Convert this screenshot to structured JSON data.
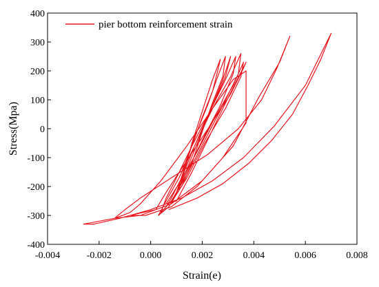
{
  "chart_data": {
    "type": "line",
    "title": "",
    "xlabel": "Strain(e)",
    "ylabel": "Stress(Mpa)",
    "xlim": [
      -0.004,
      0.008
    ],
    "ylim": [
      -400,
      400
    ],
    "xticks": [
      -0.004,
      -0.002,
      0.0,
      0.002,
      0.004,
      0.006,
      0.008
    ],
    "xtick_labels": [
      "-0.004",
      "-0.002",
      "0.000",
      "0.002",
      "0.004",
      "0.006",
      "0.008"
    ],
    "yticks": [
      -400,
      -300,
      -200,
      -100,
      0,
      100,
      200,
      300,
      400
    ],
    "ytick_labels": [
      "-400",
      "-300",
      "-200",
      "-100",
      "0",
      "100",
      "200",
      "300",
      "400"
    ],
    "grid": false,
    "legend_position": "top-left",
    "series": [
      {
        "name": "pier bottom reinforcement strain",
        "color": "#e8141c",
        "x": [
          0.0012,
          0.0016,
          0.002,
          0.0024,
          0.0026,
          0.0027,
          0.0024,
          0.002,
          0.0016,
          0.0013,
          0.0011,
          0.0012,
          0.0016,
          0.002,
          0.0024,
          0.0028,
          0.0029,
          0.0026,
          0.0022,
          0.0017,
          0.0013,
          0.001,
          0.0008,
          0.001,
          0.0014,
          0.0019,
          0.0024,
          0.0029,
          0.0031,
          0.0028,
          0.0023,
          0.0017,
          0.0012,
          0.0008,
          0.0006,
          0.0009,
          0.0014,
          0.002,
          0.0027,
          0.0032,
          0.0033,
          0.0029,
          0.0023,
          0.0016,
          0.001,
          0.0006,
          0.0004,
          0.0008,
          0.0014,
          0.0021,
          0.0028,
          0.0034,
          0.0035,
          0.0031,
          0.0024,
          0.0017,
          0.0011,
          0.0006,
          0.0003,
          0.0007,
          0.0014,
          0.0021,
          0.0029,
          0.0035,
          0.0036,
          0.0032,
          0.0025,
          0.0018,
          0.0011,
          0.0006,
          0.001,
          0.0016,
          0.0022,
          0.0028,
          0.0033,
          0.0037,
          0.0036,
          0.0031,
          0.0023,
          0.0014,
          0.0006,
          0.0002,
          -0.0008,
          -0.0002,
          0.0008,
          0.0018,
          0.0028,
          0.0037,
          0.0037,
          0.0032,
          0.0024,
          0.0014,
          0.0004,
          -0.0004,
          -0.0008,
          -0.0014,
          -0.0004,
          0.0008,
          0.002,
          0.0032,
          0.0042,
          0.005,
          0.0054,
          0.0049,
          0.0043,
          0.0034,
          0.0022,
          0.0008,
          -0.0004,
          -0.001,
          -0.0014,
          -0.0026,
          -0.0022,
          -0.0012,
          0.0,
          0.0012,
          0.0024,
          0.0036,
          0.0048,
          0.006,
          0.007,
          0.0066,
          0.0061,
          0.0055,
          0.0047,
          0.0038,
          0.0028,
          0.0018,
          0.0007
        ],
        "y": [
          -150,
          -60,
          40,
          130,
          200,
          240,
          170,
          60,
          -50,
          -150,
          -210,
          -200,
          -120,
          -10,
          90,
          180,
          250,
          180,
          80,
          -30,
          -140,
          -220,
          -250,
          -220,
          -140,
          -30,
          80,
          180,
          250,
          170,
          60,
          -60,
          -170,
          -240,
          -270,
          -240,
          -150,
          -40,
          80,
          190,
          250,
          170,
          60,
          -60,
          -170,
          -240,
          -290,
          -250,
          -160,
          -40,
          80,
          190,
          260,
          180,
          70,
          -60,
          -170,
          -250,
          -300,
          -270,
          -170,
          -50,
          70,
          180,
          230,
          150,
          40,
          -80,
          -190,
          -260,
          -250,
          -150,
          -40,
          70,
          160,
          230,
          210,
          120,
          10,
          -110,
          -220,
          -280,
          -300,
          -300,
          -270,
          -200,
          -100,
          20,
          200,
          170,
          70,
          -60,
          -180,
          -260,
          -290,
          -310,
          -300,
          -260,
          -180,
          -60,
          110,
          230,
          320,
          210,
          100,
          0,
          -90,
          -170,
          -240,
          -280,
          -310,
          -330,
          -330,
          -310,
          -280,
          -240,
          -180,
          -100,
          10,
          150,
          330,
          240,
          150,
          50,
          -40,
          -120,
          -190,
          -240,
          -280
        ]
      }
    ]
  }
}
